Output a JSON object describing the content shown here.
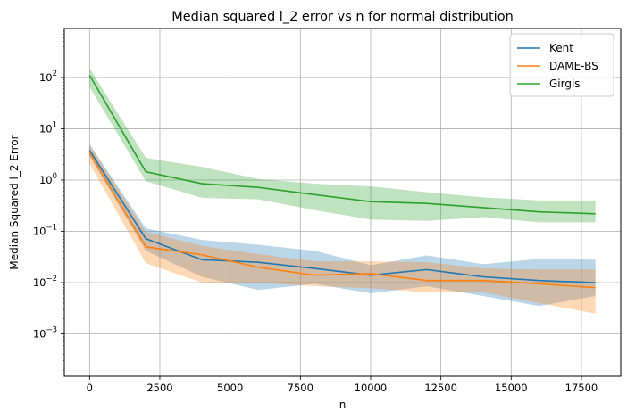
{
  "chart_data": {
    "type": "line",
    "title": "Median squared l_2 error vs n for normal distribution",
    "xlabel": "n",
    "ylabel": "Median Squared l_2 Error",
    "xlim": [
      -900,
      18900
    ],
    "ylim": [
      0.00015,
      900
    ],
    "yscale": "log",
    "grid": true,
    "legend_position": "top-right",
    "x_ticks": [
      {
        "value": 0,
        "label": "0"
      },
      {
        "value": 2500,
        "label": "2500"
      },
      {
        "value": 5000,
        "label": "5000"
      },
      {
        "value": 7500,
        "label": "7500"
      },
      {
        "value": 10000,
        "label": "10000"
      },
      {
        "value": 12500,
        "label": "12500"
      },
      {
        "value": 15000,
        "label": "15000"
      },
      {
        "value": 17500,
        "label": "17500"
      }
    ],
    "y_ticks": [
      {
        "value": 0.001,
        "base": "10",
        "exp": "−3"
      },
      {
        "value": 0.01,
        "base": "10",
        "exp": "−2"
      },
      {
        "value": 0.1,
        "base": "10",
        "exp": "−1"
      },
      {
        "value": 1,
        "base": "10",
        "exp": "0"
      },
      {
        "value": 10,
        "base": "10",
        "exp": "1"
      },
      {
        "value": 100,
        "base": "10",
        "exp": "2"
      }
    ],
    "x": [
      0,
      2000,
      4000,
      6000,
      8000,
      10000,
      12000,
      14000,
      16000,
      18000
    ],
    "series": [
      {
        "name": "Kent",
        "color": "#1f77b4",
        "values": [
          3.8,
          0.072,
          0.028,
          0.025,
          0.019,
          0.014,
          0.018,
          0.013,
          0.011,
          0.01
        ],
        "lower": [
          2.9,
          0.042,
          0.013,
          0.0072,
          0.0095,
          0.0062,
          0.0085,
          0.0055,
          0.0035,
          0.0055
        ],
        "upper": [
          5.0,
          0.115,
          0.068,
          0.055,
          0.042,
          0.022,
          0.034,
          0.023,
          0.029,
          0.028
        ]
      },
      {
        "name": "DAME-BS",
        "color": "#ff7f0e",
        "values": [
          3.4,
          0.05,
          0.035,
          0.02,
          0.014,
          0.015,
          0.011,
          0.011,
          0.0095,
          0.008
        ],
        "lower": [
          2.1,
          0.024,
          0.01,
          0.01,
          0.0085,
          0.0078,
          0.0065,
          0.0065,
          0.004,
          0.0025
        ],
        "upper": [
          4.8,
          0.098,
          0.052,
          0.036,
          0.026,
          0.026,
          0.025,
          0.019,
          0.018,
          0.018
        ]
      },
      {
        "name": "Girgis",
        "color": "#2ca02c",
        "values": [
          110,
          1.45,
          0.85,
          0.72,
          0.52,
          0.38,
          0.35,
          0.29,
          0.24,
          0.22
        ],
        "lower": [
          65,
          0.95,
          0.45,
          0.42,
          0.26,
          0.17,
          0.16,
          0.19,
          0.15,
          0.15
        ],
        "upper": [
          150,
          2.7,
          1.8,
          1.05,
          0.85,
          0.75,
          0.58,
          0.46,
          0.4,
          0.4
        ]
      }
    ]
  }
}
